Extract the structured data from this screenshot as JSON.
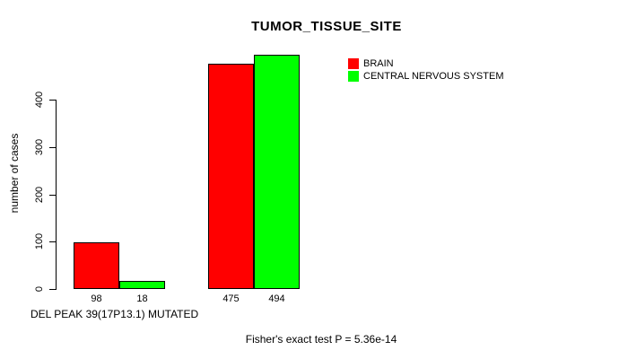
{
  "chart_data": {
    "type": "bar",
    "title": "TUMOR_TISSUE_SITE",
    "ylabel": "number of cases",
    "xlabel": "DEL PEAK 39(17P13.1) MUTATED",
    "categories": [
      "",
      ""
    ],
    "series": [
      {
        "name": "BRAIN",
        "color": "#ff0000",
        "values": [
          98,
          475
        ]
      },
      {
        "name": "CENTRAL NERVOUS SYSTEM",
        "color": "#00ff00",
        "values": [
          18,
          494
        ]
      }
    ],
    "bar_value_labels": [
      [
        98,
        475
      ],
      [
        18,
        494
      ]
    ],
    "yticks": [
      0,
      100,
      200,
      300,
      400
    ],
    "ylim": [
      0,
      500
    ],
    "grid": false,
    "legend_position": "top-right"
  },
  "footer": {
    "text": "Fisher's exact test P = 5.36e-14"
  }
}
